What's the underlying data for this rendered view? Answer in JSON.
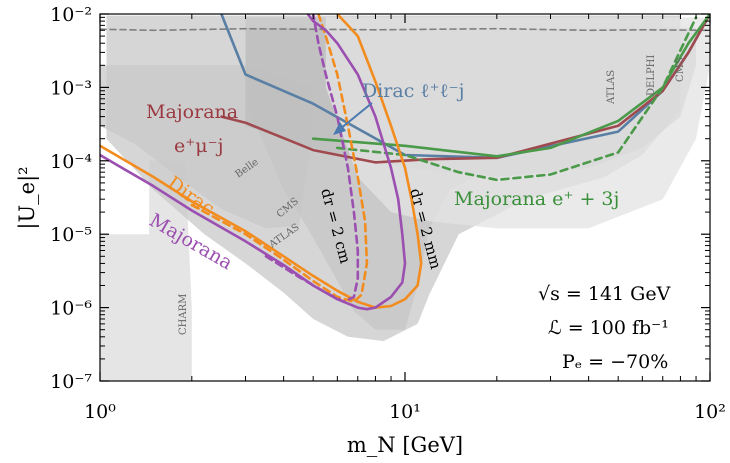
{
  "chart_data": {
    "type": "line",
    "xlabel": "m_N [GeV]",
    "ylabel": "|U_e|²",
    "xscale": "log",
    "yscale": "log",
    "xlim": [
      1,
      100
    ],
    "ylim": [
      1e-07,
      0.01
    ],
    "x_ticks": [
      {
        "label": "10⁰",
        "value": 1
      },
      {
        "label": "10¹",
        "value": 10
      },
      {
        "label": "10²",
        "value": 100
      }
    ],
    "y_ticks": [
      {
        "label": "10⁻⁷",
        "value": 1e-07
      },
      {
        "label": "10⁻⁶",
        "value": 1e-06
      },
      {
        "label": "10⁻⁵",
        "value": 1e-05
      },
      {
        "label": "10⁻⁴",
        "value": 0.0001
      },
      {
        "label": "10⁻³",
        "value": 0.001
      },
      {
        "label": "10⁻²",
        "value": 0.01
      }
    ],
    "grid": false,
    "existing_constraints": [
      {
        "label": "CHARM",
        "color": "#dcdcdc",
        "points": [
          [
            1.0,
            1e-07
          ],
          [
            1.0,
            1e-05
          ],
          [
            1.45,
            1e-05
          ],
          [
            1.45,
            0.0001
          ],
          [
            1.9,
            0.0001
          ],
          [
            2.0,
            1e-06
          ],
          [
            2.0,
            1e-07
          ]
        ]
      },
      {
        "label": "Belle",
        "color": "#c8c8c8",
        "points": [
          [
            1.0,
            0.0003
          ],
          [
            1.3,
            0.00017
          ],
          [
            1.8,
            6e-05
          ],
          [
            2.5,
            2.2e-05
          ],
          [
            3.5,
            1.2e-05
          ],
          [
            4.5,
            1.3e-05
          ],
          [
            5.0,
            0.0003
          ],
          [
            5.0,
            0.001
          ],
          [
            3.0,
            0.002
          ],
          [
            1.0,
            0.002
          ]
        ]
      },
      {
        "label": "CMS",
        "color": "#bdbdbd",
        "points": [
          [
            3.0,
            0.009
          ],
          [
            3.0,
            0.0006
          ],
          [
            3.5,
            0.00015
          ],
          [
            4.0,
            4e-05
          ],
          [
            4.8,
            1.2e-05
          ],
          [
            5.8,
            3e-06
          ],
          [
            6.8,
            9e-07
          ],
          [
            8.0,
            5e-07
          ],
          [
            10.0,
            5e-07
          ],
          [
            11.0,
            2e-06
          ],
          [
            12.0,
            1.2e-05
          ],
          [
            14.0,
            4e-05
          ],
          [
            20.0,
            9e-05
          ],
          [
            40.0,
            0.0002
          ],
          [
            70.0,
            0.001
          ],
          [
            70.0,
            0.009
          ]
        ]
      },
      {
        "label": "ATLAS",
        "color": "#c8c8c8",
        "points": [
          [
            1.05,
            0.0095
          ],
          [
            1.05,
            0.0002
          ],
          [
            1.5,
            4e-05
          ],
          [
            2.2,
            1e-05
          ],
          [
            3.0,
            4e-06
          ],
          [
            4.0,
            1.6e-06
          ],
          [
            5.0,
            7e-07
          ],
          [
            6.5,
            4e-07
          ],
          [
            8.5,
            3.5e-07
          ],
          [
            11.0,
            6e-07
          ],
          [
            12.0,
            1.5e-06
          ],
          [
            15.0,
            1e-05
          ],
          [
            25.0,
            3e-05
          ],
          [
            45.0,
            6e-05
          ],
          [
            60.0,
            0.00012
          ],
          [
            80.0,
            0.0005
          ],
          [
            80.0,
            0.0095
          ]
        ]
      },
      {
        "label": "DELPHI",
        "color": "#bebebe",
        "points": [
          [
            3.0,
            0.0065
          ],
          [
            3.0,
            0.0003
          ],
          [
            4.0,
            0.0002
          ],
          [
            6.0,
            0.00012
          ],
          [
            10.0,
            8e-05
          ],
          [
            20.0,
            6e-05
          ],
          [
            40.0,
            8e-05
          ],
          [
            60.0,
            0.00015
          ],
          [
            80.0,
            0.0004
          ],
          [
            90.0,
            0.002
          ],
          [
            90.0,
            0.0065
          ]
        ]
      },
      {
        "label": "",
        "color": "#e3e3e3",
        "points": [
          [
            5.5,
            0.009
          ],
          [
            5.5,
            0.001
          ],
          [
            7.0,
            6e-05
          ],
          [
            9.0,
            2e-05
          ],
          [
            12.0,
            1.5e-05
          ],
          [
            20.0,
            1.2e-05
          ],
          [
            40.0,
            1.2e-05
          ],
          [
            70.0,
            3e-05
          ],
          [
            90.0,
            0.0002
          ],
          [
            100.0,
            0.002
          ],
          [
            100.0,
            0.009
          ]
        ]
      }
    ],
    "series": [
      {
        "name": "",
        "style": "dashed",
        "color": "#808080",
        "x": [
          1.0,
          1.5,
          3.0,
          8.0,
          20.0,
          40.0,
          60.0,
          100.0
        ],
        "y": [
          0.0062,
          0.006,
          0.0063,
          0.0061,
          0.0063,
          0.006,
          0.0061,
          0.006
        ]
      },
      {
        "name": "Dirac ℓ⁺ℓ⁻j",
        "style": "solid",
        "color": "#5a7fa4",
        "x": [
          2.5,
          3.0,
          5.0,
          10.0,
          20.0,
          50.0,
          70.0,
          85.0,
          100.0
        ],
        "y": [
          0.01,
          0.0015,
          0.0006,
          0.00012,
          0.00011,
          0.00025,
          0.0009,
          0.003,
          0.01
        ]
      },
      {
        "name": "Majorana e⁺μ⁻j",
        "style": "solid",
        "color": "#a04a50",
        "x": [
          2.5,
          3.0,
          5.0,
          8.0,
          12.0,
          20.0,
          50.0,
          70.0,
          85.0,
          100.0
        ],
        "y": [
          0.0004,
          0.00033,
          0.00014,
          9.5e-05,
          0.000105,
          0.00011,
          0.0003,
          0.0009,
          0.003,
          0.01
        ]
      },
      {
        "name": "Majorana e⁺ + 3j",
        "style": "solid",
        "color": "#4a9a4a",
        "x": [
          5.0,
          10.0,
          20.0,
          30.0,
          50.0,
          70.0,
          85.0,
          100.0
        ],
        "y": [
          0.0002,
          0.00016,
          0.000115,
          0.00015,
          0.00035,
          0.001,
          0.004,
          0.01
        ]
      },
      {
        "name": "Majorana e⁺ + 3j",
        "style": "dashed",
        "color": "#4a9a4a",
        "x": [
          6.0,
          10.0,
          15.0,
          20.0,
          30.0,
          50.0,
          70.0,
          90.0
        ],
        "y": [
          0.00015,
          0.00012,
          7e-05,
          5.5e-05,
          6.5e-05,
          0.00013,
          0.001,
          0.009
        ]
      },
      {
        "name": "Dirac",
        "style": "solid",
        "color": "#f28c1e",
        "x": [
          1.0,
          1.5,
          2.0,
          3.0,
          4.0,
          5.0,
          6.0,
          7.0,
          8.0,
          9.0,
          10.0,
          11.0,
          11.3,
          11.0,
          10.5,
          10.0,
          9.0,
          8.0,
          7.0,
          6.5,
          6.0
        ],
        "y": [
          0.00016,
          6e-05,
          2.8e-05,
          1.1e-05,
          5e-06,
          2.7e-06,
          1.7e-06,
          1.2e-06,
          1e-06,
          1.05e-06,
          1.3e-06,
          2e-06,
          4e-06,
          1e-05,
          3e-05,
          8e-05,
          0.0003,
          0.0012,
          0.005,
          0.007,
          0.01
        ]
      },
      {
        "name": "",
        "style": "dashed",
        "color": "#f28c1e",
        "x": [
          2.0,
          3.0,
          4.0,
          5.0,
          6.0,
          6.8,
          7.2,
          7.5,
          7.4,
          7.0,
          6.5,
          6.0,
          5.5,
          5.2
        ],
        "y": [
          2.5e-05,
          1e-05,
          4.5e-06,
          2.3e-06,
          1.4e-06,
          1.2e-06,
          1.5e-06,
          4e-06,
          1.5e-05,
          6e-05,
          0.0003,
          0.0015,
          0.005,
          0.01
        ]
      },
      {
        "name": "Majorana",
        "style": "solid",
        "color": "#9b4fb0",
        "x": [
          1.0,
          1.5,
          2.0,
          3.0,
          4.0,
          5.0,
          6.0,
          7.0,
          7.5,
          8.0,
          9.0,
          9.8,
          10.0,
          9.8,
          9.5,
          9.0,
          8.0,
          7.0,
          6.0,
          5.5,
          5.0,
          4.8
        ],
        "y": [
          0.00012,
          4.5e-05,
          2.1e-05,
          8e-06,
          3.8e-06,
          2e-06,
          1.3e-06,
          1e-06,
          9.5e-07,
          1e-06,
          1.4e-06,
          2.2e-06,
          4e-06,
          1e-05,
          3e-05,
          8e-05,
          0.0004,
          0.0015,
          0.004,
          0.006,
          0.008,
          0.01
        ]
      },
      {
        "name": "",
        "style": "dashed",
        "color": "#9b4fb0",
        "x": [
          3.5,
          4.5,
          5.5,
          6.3,
          6.8,
          7.0,
          7.0,
          6.8,
          6.5,
          6.0,
          5.5,
          5.2,
          5.0
        ],
        "y": [
          5e-06,
          2.6e-06,
          1.6e-06,
          1.2e-06,
          1.4e-06,
          2.5e-06,
          6e-06,
          2e-05,
          8e-05,
          0.0004,
          0.0015,
          0.004,
          0.01
        ]
      }
    ],
    "annotations": {
      "dirac_llj": "Dirac ℓ⁺ℓ⁻j",
      "majorana_emuj_line1": "Majorana",
      "majorana_emuj_line2": "e⁺μ⁻j",
      "majorana_e3j": "Majorana e⁺ + 3j",
      "dirac": "Dirac",
      "majorana": "Majorana",
      "dr_2cm": "dᴛ = 2 cm",
      "dr_2mm": "dᴛ = 2 mm",
      "sqrt_s": "√s = 141 GeV",
      "luminosity": "ℒ = 100 fb⁻¹",
      "polarization": "Pₑ = −70%",
      "exp_charm": "CHARM",
      "exp_belle": "Belle",
      "exp_cms_low": "CMS",
      "exp_atlas_low": "ATLAS",
      "exp_atlas_high": "ATLAS",
      "exp_delphi": "DELPHI",
      "exp_cms_high": "CMS"
    }
  }
}
